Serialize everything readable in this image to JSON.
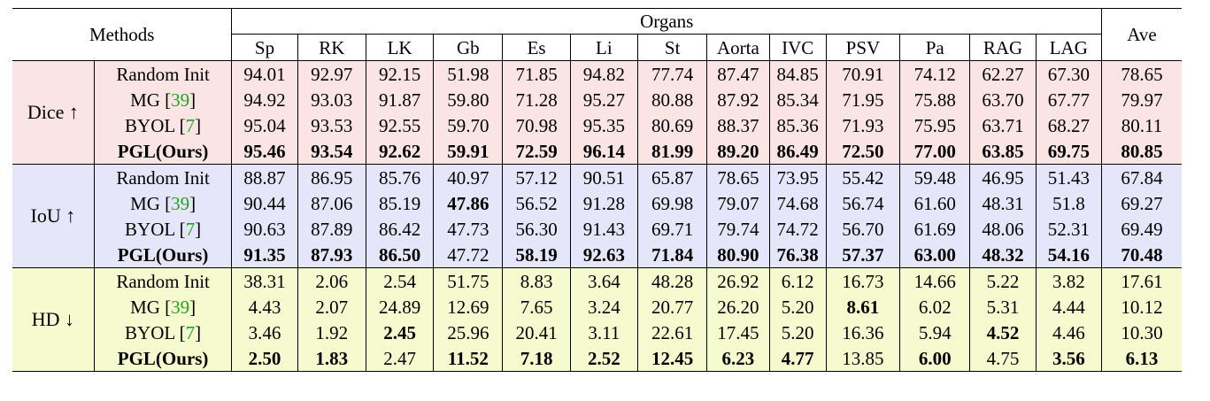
{
  "header": {
    "methods_label": "Methods",
    "organs_label": "Organs",
    "ave_label": "Ave",
    "organs": [
      "Sp",
      "RK",
      "LK",
      "Gb",
      "Es",
      "Li",
      "St",
      "Aorta",
      "IVC",
      "PSV",
      "Pa",
      "RAG",
      "LAG"
    ]
  },
  "colors": {
    "dice_bg": "#fbe4e4",
    "iou_bg": "#e6e6fa",
    "hd_bg": "#f6fbcf",
    "citation": "#1fa31f"
  },
  "groups": [
    {
      "metric": "Dice ↑",
      "rows": [
        {
          "method": "Random Init",
          "ref": "",
          "values": [
            "94.01",
            "92.97",
            "92.15",
            "51.98",
            "71.85",
            "94.82",
            "77.74",
            "87.47",
            "84.85",
            "70.91",
            "74.12",
            "62.27",
            "67.30"
          ],
          "ave": "78.65",
          "bold": []
        },
        {
          "method": "MG",
          "ref": "39",
          "values": [
            "94.92",
            "93.03",
            "91.87",
            "59.80",
            "71.28",
            "95.27",
            "80.88",
            "87.92",
            "85.34",
            "71.95",
            "75.88",
            "63.70",
            "67.77"
          ],
          "ave": "79.97",
          "bold": []
        },
        {
          "method": "BYOL",
          "ref": "7",
          "values": [
            "95.04",
            "93.53",
            "92.55",
            "59.70",
            "70.98",
            "95.35",
            "80.69",
            "88.37",
            "85.36",
            "71.93",
            "75.95",
            "63.71",
            "68.27"
          ],
          "ave": "80.11",
          "bold": []
        },
        {
          "method": "PGL(Ours)",
          "ref": "",
          "values": [
            "95.46",
            "93.54",
            "92.62",
            "59.91",
            "72.59",
            "96.14",
            "81.99",
            "89.20",
            "86.49",
            "72.50",
            "77.00",
            "63.85",
            "69.75"
          ],
          "ave": "80.85",
          "bold": [
            0,
            1,
            2,
            3,
            4,
            5,
            6,
            7,
            8,
            9,
            10,
            11,
            12,
            13
          ],
          "method_bold": true
        }
      ]
    },
    {
      "metric": "IoU ↑",
      "rows": [
        {
          "method": "Random Init",
          "ref": "",
          "values": [
            "88.87",
            "86.95",
            "85.76",
            "40.97",
            "57.12",
            "90.51",
            "65.87",
            "78.65",
            "73.95",
            "55.42",
            "59.48",
            "46.95",
            "51.43"
          ],
          "ave": "67.84",
          "bold": []
        },
        {
          "method": "MG",
          "ref": "39",
          "values": [
            "90.44",
            "87.06",
            "85.19",
            "47.86",
            "56.52",
            "91.28",
            "69.98",
            "79.07",
            "74.68",
            "56.74",
            "61.60",
            "48.31",
            "51.8"
          ],
          "ave": "69.27",
          "bold": [
            3
          ]
        },
        {
          "method": "BYOL",
          "ref": "7",
          "values": [
            "90.63",
            "87.89",
            "86.42",
            "47.73",
            "56.30",
            "91.43",
            "69.71",
            "79.74",
            "74.72",
            "56.70",
            "61.69",
            "48.06",
            "52.31"
          ],
          "ave": "69.49",
          "bold": []
        },
        {
          "method": "PGL(Ours)",
          "ref": "",
          "values": [
            "91.35",
            "87.93",
            "86.50",
            "47.72",
            "58.19",
            "92.63",
            "71.84",
            "80.90",
            "76.38",
            "57.37",
            "63.00",
            "48.32",
            "54.16"
          ],
          "ave": "70.48",
          "bold": [
            0,
            1,
            2,
            4,
            5,
            6,
            7,
            8,
            9,
            10,
            11,
            12,
            13
          ],
          "method_bold": true
        }
      ]
    },
    {
      "metric": "HD ↓",
      "rows": [
        {
          "method": "Random Init",
          "ref": "",
          "values": [
            "38.31",
            "2.06",
            "2.54",
            "51.75",
            "8.83",
            "3.64",
            "48.28",
            "26.92",
            "6.12",
            "16.73",
            "14.66",
            "5.22",
            "3.82"
          ],
          "ave": "17.61",
          "bold": []
        },
        {
          "method": "MG",
          "ref": "39",
          "values": [
            "4.43",
            "2.07",
            "24.89",
            "12.69",
            "7.65",
            "3.24",
            "20.77",
            "26.20",
            "5.20",
            "8.61",
            "6.02",
            "5.31",
            "4.44"
          ],
          "ave": "10.12",
          "bold": [
            9
          ]
        },
        {
          "method": "BYOL",
          "ref": "7",
          "values": [
            "3.46",
            "1.92",
            "2.45",
            "25.96",
            "20.41",
            "3.11",
            "22.61",
            "17.45",
            "5.20",
            "16.36",
            "5.94",
            "4.52",
            "4.46"
          ],
          "ave": "10.30",
          "bold": [
            2,
            11
          ]
        },
        {
          "method": "PGL(Ours)",
          "ref": "",
          "values": [
            "2.50",
            "1.83",
            "2.47",
            "11.52",
            "7.18",
            "2.52",
            "12.45",
            "6.23",
            "4.77",
            "13.85",
            "6.00",
            "4.75",
            "3.56"
          ],
          "ave": "6.13",
          "bold": [
            0,
            1,
            3,
            4,
            5,
            6,
            7,
            8,
            10,
            12,
            13
          ],
          "method_bold": true
        }
      ]
    }
  ]
}
